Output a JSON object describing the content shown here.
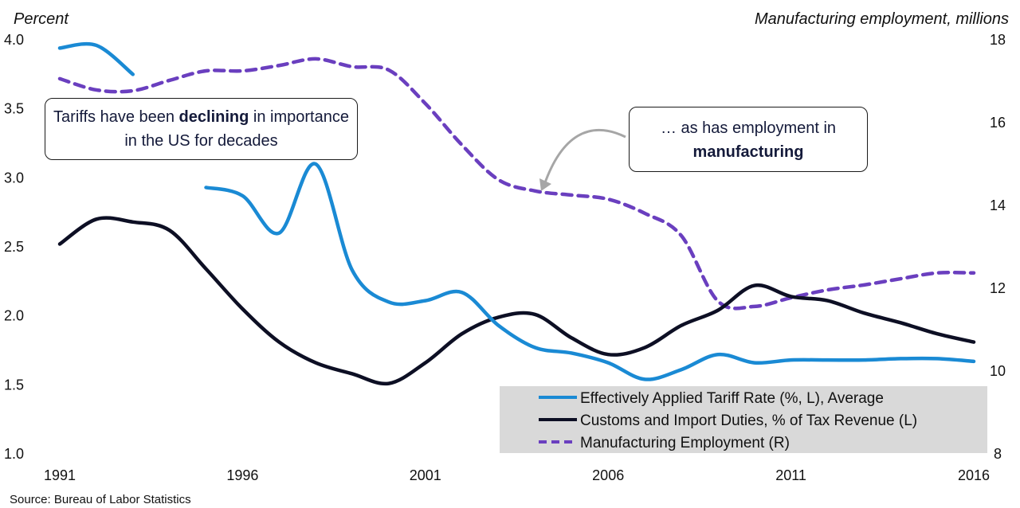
{
  "chart_data": {
    "type": "line",
    "title": "",
    "left_axis": {
      "label": "Percent",
      "range": [
        1.0,
        4.0
      ],
      "ticks": [
        "1.0",
        "1.5",
        "2.0",
        "2.5",
        "3.0",
        "3.5",
        "4.0"
      ]
    },
    "right_axis": {
      "label": "Manufacturing employment, millions",
      "range": [
        8,
        18
      ],
      "ticks": [
        "8",
        "10",
        "12",
        "14",
        "16",
        "18"
      ]
    },
    "x_axis": {
      "label": "",
      "range": [
        1991,
        2016
      ],
      "ticks": [
        "1991",
        "1996",
        "2001",
        "2006",
        "2011",
        "2016"
      ]
    },
    "x": [
      1991,
      1992,
      1993,
      1994,
      1995,
      1996,
      1997,
      1998,
      1999,
      2000,
      2001,
      2002,
      2003,
      2004,
      2005,
      2006,
      2007,
      2008,
      2009,
      2010,
      2011,
      2012,
      2013,
      2014,
      2015,
      2016
    ],
    "series": [
      {
        "name": "Effectively Applied Tariff Rate (%, L), Average",
        "axis": "left",
        "color": "#1a8ad4",
        "style": "solid",
        "values": [
          3.94,
          3.96,
          3.75,
          null,
          2.93,
          2.87,
          2.6,
          3.1,
          2.33,
          2.1,
          2.11,
          2.17,
          1.93,
          1.77,
          1.73,
          1.66,
          1.54,
          1.61,
          1.72,
          1.66,
          1.68,
          1.68,
          1.68,
          1.69,
          1.69,
          1.67
        ]
      },
      {
        "name": "Customs and Import Duties, % of Tax Revenue (L)",
        "axis": "left",
        "color": "#0d0f24",
        "style": "solid",
        "values": [
          2.52,
          2.7,
          2.68,
          2.62,
          2.34,
          2.05,
          1.81,
          1.66,
          1.58,
          1.51,
          1.66,
          1.87,
          1.99,
          2.01,
          1.84,
          1.72,
          1.77,
          1.93,
          2.04,
          2.22,
          2.14,
          2.11,
          2.02,
          1.95,
          1.87,
          1.81
        ]
      },
      {
        "name": "Manufacturing Employment (R)",
        "axis": "right",
        "color": "#6a3fbf",
        "style": "dashed",
        "values": [
          17.06,
          16.79,
          16.77,
          17.02,
          17.25,
          17.25,
          17.38,
          17.54,
          17.35,
          17.27,
          16.46,
          15.46,
          14.62,
          14.35,
          14.25,
          14.15,
          13.81,
          13.27,
          11.69,
          11.56,
          11.77,
          11.96,
          12.08,
          12.23,
          12.37,
          12.37
        ]
      }
    ],
    "legend": {
      "placement": "bottom-right",
      "background": "#d9d9d9"
    },
    "grid": false,
    "annotations": [
      {
        "id": "callout-1",
        "text_before": "Tariffs have been ",
        "bold": "declining",
        "text_after": " in importance in the US for decades"
      },
      {
        "id": "callout-2",
        "text_before": "… as has employment in ",
        "bold": "manufacturing",
        "text_after": "",
        "arrow_color": "#a6a6a6",
        "arrow_target_year": 2004,
        "arrow_target_series": "Manufacturing Employment (R)"
      }
    ],
    "source": "Source: Bureau of Labor Statistics"
  }
}
